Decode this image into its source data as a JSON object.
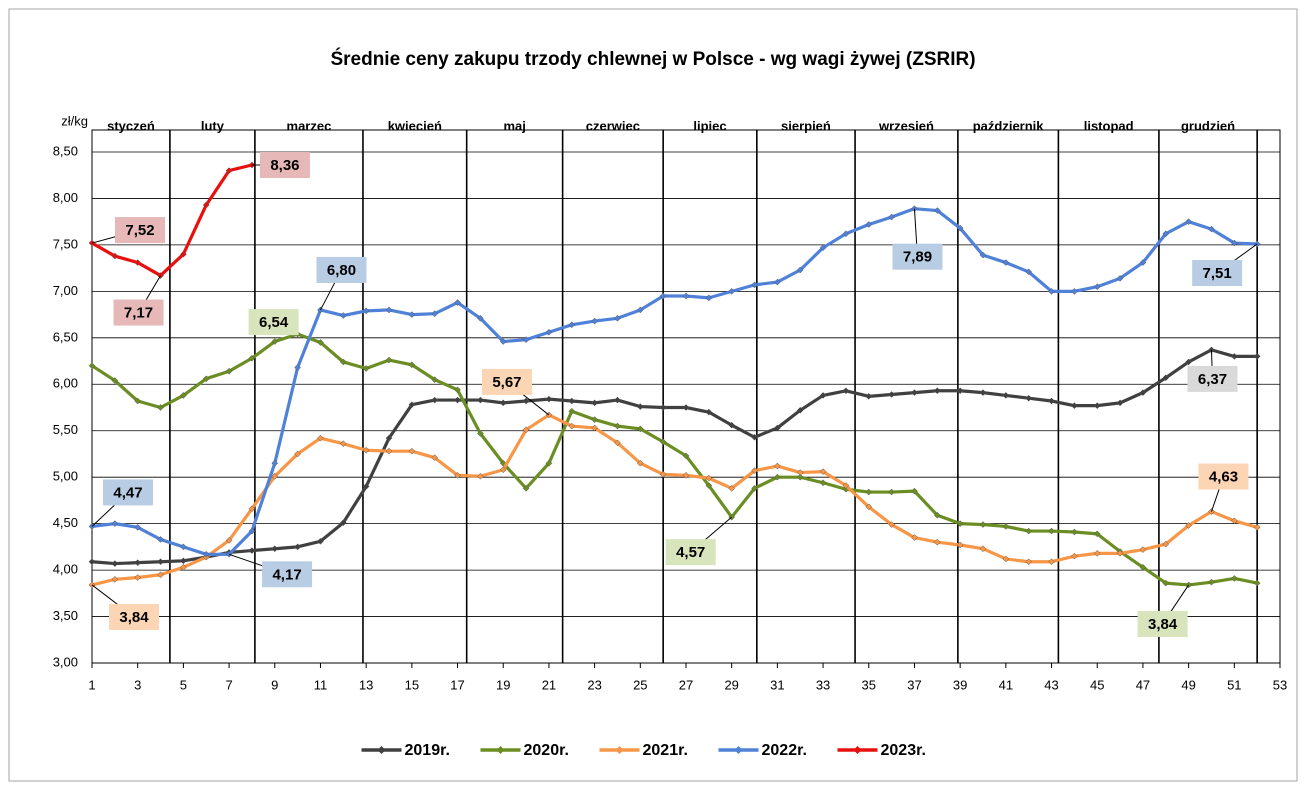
{
  "chart_data": {
    "type": "line",
    "title": "Średnie ceny zakupu trzody chlewnej w Polsce - wg wagi żywej (ZSRIR)",
    "y_label": "zł/kg",
    "months": [
      "styczeń",
      "luty",
      "marzec",
      "kwiecień",
      "maj",
      "czerwiec",
      "lipiec",
      "sierpień",
      "wrzesień",
      "październik",
      "listopad",
      "grudzień"
    ],
    "month_dividers": [
      4.41,
      8.13,
      12.86,
      17.4,
      21.6,
      26.0,
      30.1,
      34.4,
      38.9,
      43.3,
      47.7,
      52.0
    ],
    "x": [
      1,
      2,
      3,
      4,
      5,
      6,
      7,
      8,
      9,
      10,
      11,
      12,
      13,
      14,
      15,
      16,
      17,
      18,
      19,
      20,
      21,
      22,
      23,
      24,
      25,
      26,
      27,
      28,
      29,
      30,
      31,
      32,
      33,
      34,
      35,
      36,
      37,
      38,
      39,
      40,
      41,
      42,
      43,
      44,
      45,
      46,
      47,
      48,
      49,
      50,
      51,
      52
    ],
    "xlim": [
      1,
      53
    ],
    "xticks": [
      1,
      3,
      5,
      7,
      9,
      11,
      13,
      15,
      17,
      19,
      21,
      23,
      25,
      27,
      29,
      31,
      33,
      35,
      37,
      39,
      41,
      43,
      45,
      47,
      49,
      51,
      53
    ],
    "ylim": [
      3,
      8.5
    ],
    "yticks": [
      {
        "value": 3,
        "label": "3,00"
      },
      {
        "value": 3.5,
        "label": "3,50"
      },
      {
        "value": 4,
        "label": "4,00"
      },
      {
        "value": 4.5,
        "label": "4,50"
      },
      {
        "value": 5,
        "label": "5,00"
      },
      {
        "value": 5.5,
        "label": "5,50"
      },
      {
        "value": 6,
        "label": "6,00"
      },
      {
        "value": 6.5,
        "label": "6,50"
      },
      {
        "value": 7,
        "label": "7,00"
      },
      {
        "value": 7.5,
        "label": "7,50"
      },
      {
        "value": 8,
        "label": "8,00"
      },
      {
        "value": 8.5,
        "label": "8,50"
      }
    ],
    "grid": true,
    "legend": "bottom",
    "series": [
      {
        "name": "2019r.",
        "color": "#404040",
        "label_color": "#d9d9d9",
        "values": [
          4.09,
          4.07,
          4.08,
          4.09,
          4.1,
          4.14,
          4.19,
          4.21,
          4.23,
          4.25,
          4.31,
          4.51,
          4.9,
          5.42,
          5.78,
          5.83,
          5.83,
          5.83,
          5.8,
          5.82,
          5.84,
          5.82,
          5.8,
          5.83,
          5.76,
          5.75,
          5.75,
          5.7,
          5.56,
          5.43,
          5.53,
          5.72,
          5.88,
          5.93,
          5.87,
          5.89,
          5.91,
          5.93,
          5.93,
          5.91,
          5.88,
          5.85,
          5.82,
          5.77,
          5.77,
          5.8,
          5.91,
          6.07,
          6.24,
          6.37,
          6.3,
          6.3
        ],
        "value_labels": [
          null,
          null,
          null,
          null,
          null,
          null,
          null,
          null,
          null,
          null,
          null,
          null,
          null,
          null,
          null,
          null,
          null,
          null,
          null,
          null,
          null,
          null,
          null,
          null,
          null,
          null,
          null,
          null,
          null,
          null,
          null,
          null,
          null,
          null,
          null,
          null,
          null,
          null,
          null,
          null,
          null,
          null,
          null,
          null,
          null,
          null,
          null,
          null,
          null,
          "6,37",
          null,
          null
        ]
      },
      {
        "name": "2020r.",
        "color": "#6b8e23",
        "label_color": "#d8e4bc",
        "values": [
          6.2,
          6.04,
          5.82,
          5.75,
          5.88,
          6.06,
          6.14,
          6.28,
          6.46,
          6.54,
          6.45,
          6.24,
          6.17,
          6.26,
          6.21,
          6.05,
          5.94,
          5.47,
          5.15,
          4.88,
          5.15,
          5.71,
          5.62,
          5.55,
          5.52,
          5.38,
          5.23,
          4.91,
          4.57,
          4.88,
          5.0,
          5.0,
          4.94,
          4.87,
          4.84,
          4.84,
          4.85,
          4.59,
          4.5,
          4.49,
          4.47,
          4.42,
          4.42,
          4.41,
          4.39,
          4.2,
          4.03,
          3.86,
          3.84,
          3.87,
          3.91,
          3.86
        ],
        "value_labels": [
          null,
          null,
          null,
          null,
          null,
          null,
          null,
          null,
          null,
          "6,54",
          null,
          null,
          null,
          null,
          null,
          null,
          null,
          null,
          null,
          null,
          null,
          null,
          null,
          null,
          null,
          null,
          null,
          null,
          "4,57",
          null,
          null,
          null,
          null,
          null,
          null,
          null,
          null,
          null,
          null,
          null,
          null,
          null,
          null,
          null,
          null,
          null,
          null,
          null,
          "3,84",
          null,
          null,
          null
        ]
      },
      {
        "name": "2021r.",
        "color": "#f79646",
        "label_color": "#fcd5b4",
        "values": [
          3.84,
          3.9,
          3.92,
          3.95,
          4.03,
          4.14,
          4.32,
          4.66,
          5.01,
          5.25,
          5.42,
          5.36,
          5.29,
          5.28,
          5.28,
          5.21,
          5.02,
          5.01,
          5.08,
          5.51,
          5.67,
          5.55,
          5.53,
          5.37,
          5.15,
          5.03,
          5.02,
          4.99,
          4.88,
          5.07,
          5.12,
          5.05,
          5.06,
          4.91,
          4.68,
          4.49,
          4.35,
          4.3,
          4.27,
          4.23,
          4.12,
          4.09,
          4.09,
          4.15,
          4.18,
          4.18,
          4.22,
          4.28,
          4.48,
          4.63,
          4.53,
          4.46
        ],
        "value_labels": [
          "3,84",
          null,
          null,
          null,
          null,
          null,
          null,
          null,
          null,
          null,
          null,
          null,
          null,
          null,
          null,
          null,
          null,
          null,
          null,
          null,
          "5,67",
          null,
          null,
          null,
          null,
          null,
          null,
          null,
          null,
          null,
          null,
          null,
          null,
          null,
          null,
          null,
          null,
          null,
          null,
          null,
          null,
          null,
          null,
          null,
          null,
          null,
          null,
          null,
          null,
          "4,63",
          null,
          null
        ]
      },
      {
        "name": "2022r.",
        "color": "#4f81d9",
        "label_color": "#b8cce4",
        "values": [
          4.47,
          4.5,
          4.46,
          4.33,
          4.25,
          4.17,
          4.17,
          4.42,
          5.15,
          6.18,
          6.8,
          6.74,
          6.79,
          6.8,
          6.75,
          6.76,
          6.88,
          6.71,
          6.46,
          6.48,
          6.56,
          6.64,
          6.68,
          6.71,
          6.8,
          6.95,
          6.95,
          6.93,
          7.0,
          7.07,
          7.1,
          7.23,
          7.47,
          7.62,
          7.72,
          7.8,
          7.89,
          7.87,
          7.68,
          7.39,
          7.31,
          7.21,
          7.0,
          7.0,
          7.05,
          7.14,
          7.31,
          7.62,
          7.75,
          7.67,
          7.52,
          7.51
        ],
        "value_labels": [
          "4,47",
          null,
          null,
          null,
          null,
          null,
          "4,17",
          null,
          null,
          null,
          "6,80",
          null,
          null,
          null,
          null,
          null,
          null,
          null,
          null,
          null,
          null,
          null,
          null,
          null,
          null,
          null,
          null,
          null,
          null,
          null,
          null,
          null,
          null,
          null,
          null,
          null,
          "7,89",
          null,
          null,
          null,
          null,
          null,
          null,
          null,
          null,
          null,
          null,
          null,
          null,
          null,
          null,
          "7,51"
        ]
      },
      {
        "name": "2023r.",
        "color": "#e8100e",
        "label_color": "#e6b9b8",
        "values": [
          7.52,
          7.38,
          7.31,
          7.17,
          7.4,
          7.93,
          8.3,
          8.36,
          null,
          null,
          null,
          null,
          null,
          null,
          null,
          null,
          null,
          null,
          null,
          null,
          null,
          null,
          null,
          null,
          null,
          null,
          null,
          null,
          null,
          null,
          null,
          null,
          null,
          null,
          null,
          null,
          null,
          null,
          null,
          null,
          null,
          null,
          null,
          null,
          null,
          null,
          null,
          null,
          null,
          null,
          null,
          null
        ],
        "value_labels": [
          "7,52",
          null,
          null,
          "7,17",
          null,
          null,
          null,
          "8,36",
          null,
          null,
          null,
          null,
          null,
          null,
          null,
          null,
          null,
          null,
          null,
          null,
          null,
          null,
          null,
          null,
          null,
          null,
          null,
          null,
          null,
          null,
          null,
          null,
          null,
          null,
          null,
          null,
          null,
          null,
          null,
          null,
          null,
          null,
          null,
          null,
          null,
          null,
          null,
          null,
          null,
          null,
          null,
          null
        ]
      }
    ]
  }
}
